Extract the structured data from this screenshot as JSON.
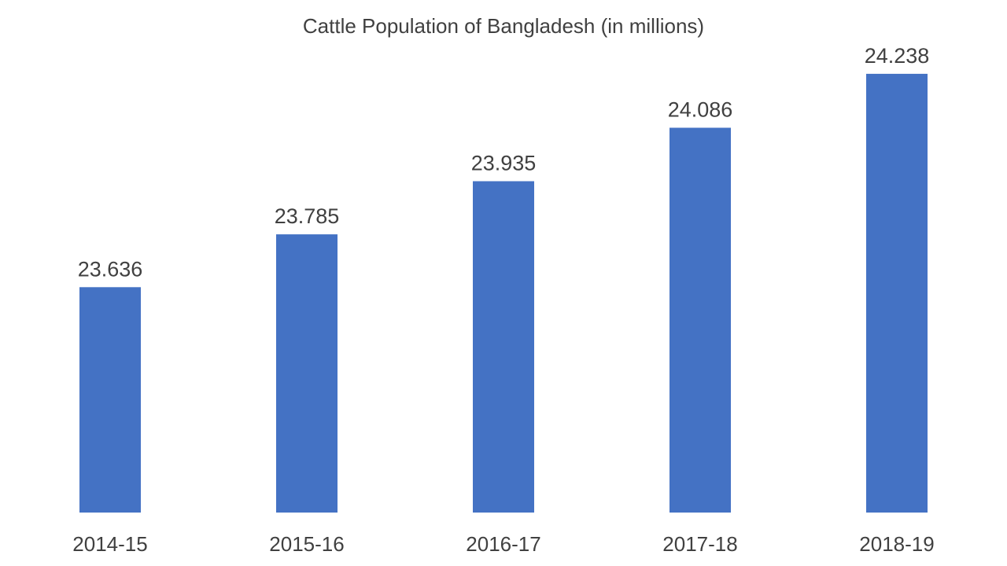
{
  "chart_data": {
    "type": "bar",
    "title": "Cattle Population of Bangladesh (in millions)",
    "xlabel": "",
    "ylabel": "",
    "categories": [
      "2014-15",
      "2015-16",
      "2016-17",
      "2017-18",
      "2018-19"
    ],
    "values": [
      23.636,
      23.785,
      23.935,
      24.086,
      24.238
    ],
    "data_labels": [
      "23.636",
      "23.785",
      "23.935",
      "24.086",
      "24.238"
    ],
    "ylim": [
      23.0,
      24.3
    ],
    "grid": false,
    "legend": "none",
    "bar_color": "#4472C4",
    "text_color": "#404040"
  }
}
